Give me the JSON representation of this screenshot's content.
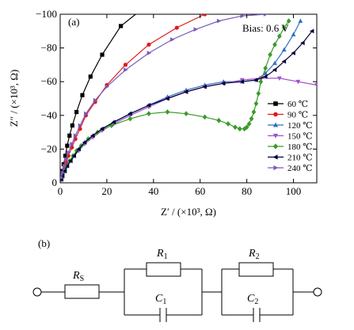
{
  "chart_data": {
    "type": "scatter",
    "panel_label": "(a)",
    "annotation": "Bias: 0.6 V",
    "xlabel": "Z′ / (×10³, Ω)",
    "ylabel": "Z″ / (×10³, Ω)",
    "xlim": [
      0,
      110
    ],
    "ylim": [
      0,
      -100
    ],
    "xticks": [
      0,
      20,
      40,
      60,
      80,
      100
    ],
    "yticks": [
      0,
      -20,
      -40,
      -60,
      -80,
      -100
    ],
    "xtick_labels": [
      "0",
      "20",
      "40",
      "60",
      "80",
      "100"
    ],
    "ytick_labels": [
      "0",
      "−20",
      "−40",
      "−60",
      "−80",
      "−100"
    ],
    "grid": false,
    "legend_position": "right",
    "series": [
      {
        "name": "60 ℃",
        "color": "#000000",
        "marker": "square",
        "x": [
          0.5,
          1.0,
          1.5,
          2.2,
          3.0,
          4.0,
          5.2,
          7.0,
          9.5,
          13.0,
          18.0,
          26.0,
          36.0
        ],
        "y": [
          -3,
          -7,
          -11,
          -16,
          -22,
          -28,
          -34,
          -42,
          -52,
          -63,
          -76,
          -93,
          -104
        ]
      },
      {
        "name": "90 ℃",
        "color": "#e0191e",
        "marker": "circle",
        "x": [
          0.5,
          1.0,
          1.8,
          2.5,
          3.5,
          5.0,
          6.5,
          8.5,
          11.0,
          15.0,
          20.0,
          28.0,
          38.0,
          50.0,
          62.0
        ],
        "y": [
          -2,
          -5,
          -8,
          -12,
          -16,
          -21,
          -26,
          -32,
          -40,
          -48,
          -58,
          -70,
          -82,
          -92,
          -100
        ]
      },
      {
        "name": "120 ℃",
        "color": "#3070c0",
        "marker": "triangle-up",
        "x": [
          0.5,
          1.0,
          2.0,
          3.0,
          4.5,
          6.0,
          8.0,
          10.5,
          14.0,
          18.0,
          23.0,
          30.0,
          38.0,
          46.0,
          54.0,
          62.0,
          70.0,
          78.0,
          84.0,
          88.0,
          92.0,
          96.0,
          100.0,
          103.0
        ],
        "y": [
          -2,
          -4,
          -7,
          -10,
          -13,
          -16,
          -20,
          -24,
          -28,
          -32,
          -36,
          -41,
          -46,
          -51,
          -55,
          -58,
          -60,
          -60,
          -61,
          -65,
          -71,
          -79,
          -88,
          -96
        ]
      },
      {
        "name": "150 ℃",
        "color": "#a050c8",
        "marker": "triangle-down",
        "x": [
          0.5,
          1.0,
          2.0,
          3.0,
          4.5,
          6.0,
          8.0,
          10.5,
          14.0,
          18.0,
          23.0,
          30.0,
          38.0,
          46.0,
          54.0,
          62.0,
          70.0,
          78.0,
          86.0,
          94.0,
          102.0,
          110.0
        ],
        "y": [
          -2,
          -4,
          -7,
          -10,
          -13,
          -16,
          -19,
          -23,
          -27,
          -31,
          -35,
          -40,
          -45,
          -50,
          -54,
          -57,
          -59,
          -61,
          -62,
          -62,
          -60,
          -58
        ]
      },
      {
        "name": "180 ℃",
        "color": "#3a9a2a",
        "marker": "diamond",
        "x": [
          0.5,
          1.0,
          2.0,
          3.0,
          4.0,
          5.5,
          7.0,
          9.0,
          12.0,
          16.0,
          22.0,
          30.0,
          38.0,
          46.0,
          54.0,
          62.0,
          68.0,
          72.0,
          75.0,
          77.0,
          79.0,
          80.0,
          81.0,
          82.0,
          83.0,
          84.0,
          85.0,
          86.0,
          88.0,
          90.0,
          92.0,
          94.0,
          96.0,
          98.0
        ],
        "y": [
          -2,
          -4,
          -7,
          -10,
          -13,
          -16,
          -19,
          -22,
          -26,
          -30,
          -34,
          -38,
          -41,
          -42,
          -41,
          -39,
          -37,
          -35,
          -33,
          -32,
          -32,
          -33,
          -35,
          -38,
          -42,
          -47,
          -53,
          -60,
          -68,
          -76,
          -82,
          -87,
          -92,
          -96
        ]
      },
      {
        "name": "210 ℃",
        "color": "#00003a",
        "marker": "triangle-left",
        "x": [
          0.5,
          1.0,
          2.0,
          3.0,
          4.5,
          6.0,
          8.0,
          10.5,
          14.0,
          18.0,
          23.0,
          30.0,
          38.0,
          46.0,
          54.0,
          62.0,
          70.0,
          78.0,
          84.0,
          88.0,
          92.0,
          96.0,
          100.0,
          104.0,
          108.0
        ],
        "y": [
          -2,
          -4,
          -7,
          -10,
          -13,
          -16,
          -20,
          -24,
          -28,
          -32,
          -36,
          -41,
          -46,
          -50,
          -54,
          -57,
          -59,
          -60,
          -61,
          -63,
          -67,
          -72,
          -77,
          -83,
          -90
        ]
      },
      {
        "name": "240 ℃",
        "color": "#7a5ab8",
        "marker": "triangle-right",
        "x": [
          0.5,
          1.0,
          1.8,
          2.5,
          3.5,
          5.0,
          6.5,
          8.5,
          11.0,
          15.0,
          20.0,
          28.0,
          38.0,
          48.0,
          58.0,
          68.0,
          78.0,
          88.0
        ],
        "y": [
          -3,
          -6,
          -10,
          -14,
          -18,
          -23,
          -28,
          -34,
          -41,
          -49,
          -57,
          -67,
          -77,
          -85,
          -91,
          -96,
          -99,
          -100
        ]
      }
    ]
  },
  "circuit": {
    "panel_label": "(b)",
    "components": {
      "rs": {
        "symbol": "R",
        "sub": "S"
      },
      "r1": {
        "symbol": "R",
        "sub": "1"
      },
      "c1": {
        "symbol": "C",
        "sub": "1"
      },
      "r2": {
        "symbol": "R",
        "sub": "2"
      },
      "c2": {
        "symbol": "C",
        "sub": "2"
      }
    }
  }
}
